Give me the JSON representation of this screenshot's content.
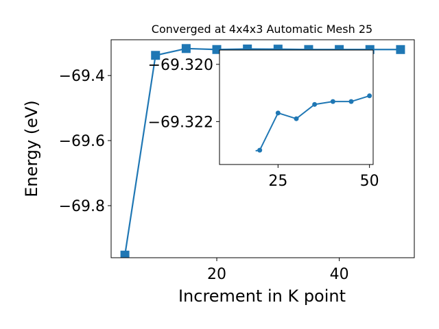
{
  "chart_data": {
    "type": "line",
    "title": "Converged at 4x4x3 Automatic Mesh 25",
    "xlabel": "Increment in K point",
    "ylabel": "Energy (eV)",
    "color": "#1f77b4",
    "main": {
      "x": [
        5,
        10,
        15,
        20,
        25,
        30,
        35,
        40,
        45,
        50
      ],
      "y": [
        -69.952,
        -69.338,
        -69.317,
        -69.32,
        -69.3184,
        -69.3188,
        -69.32,
        -69.32,
        -69.3201,
        -69.3201
      ],
      "xlim": [
        2.75,
        52.25
      ],
      "ylim": [
        -69.96,
        -69.29
      ],
      "xticks": [
        20,
        40
      ],
      "xtick_labels": [
        "20",
        "40"
      ],
      "yticks": [
        -69.4,
        -69.6,
        -69.8
      ],
      "ytick_labels": [
        "−69.4",
        "−69.6",
        "−69.8"
      ],
      "marker": "square"
    },
    "inset": {
      "x": [
        20,
        25,
        30,
        35,
        40,
        45,
        50
      ],
      "y": [
        -69.323,
        -69.3217,
        -69.3219,
        -69.3214,
        -69.3213,
        -69.3213,
        -69.3211
      ],
      "extra_y_top": -69.3235,
      "xlim": [
        9,
        51
      ],
      "ylim": [
        -69.3235,
        -69.3195
      ],
      "xticks": [
        25,
        50
      ],
      "xtick_labels": [
        "25",
        "50"
      ],
      "yticks": [
        -69.322,
        -69.32
      ],
      "ytick_labels": [
        "−69.322",
        "−69.320"
      ],
      "marker": "circle"
    }
  }
}
